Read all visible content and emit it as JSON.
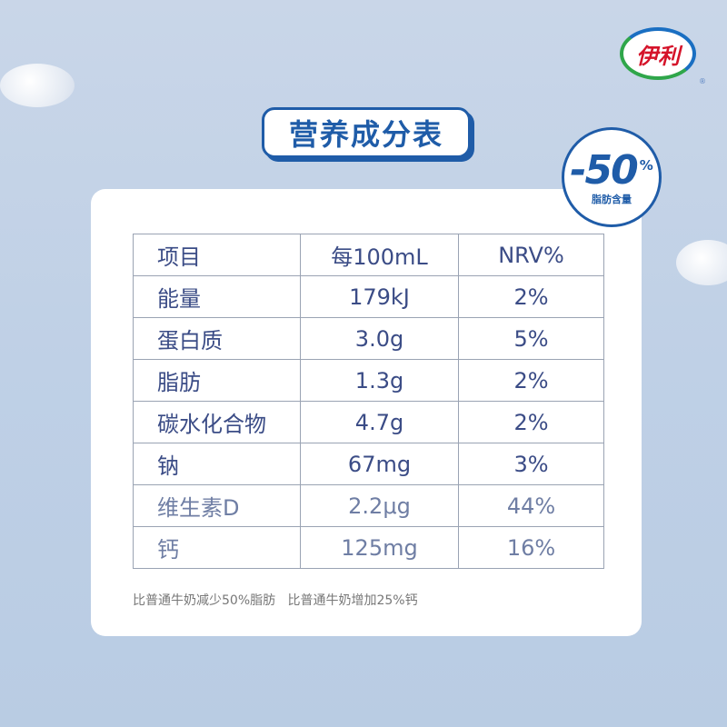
{
  "brand": {
    "logo_text": "伊利",
    "registered": "®",
    "colors": {
      "red": "#d5132a",
      "blue": "#1a6fc2",
      "green": "#2fa64a"
    }
  },
  "title": "营养成分表",
  "badge": {
    "value": "-50",
    "percent": "%",
    "label": "脂肪含量"
  },
  "table": {
    "headers": [
      "项目",
      "每100mL",
      "NRV%"
    ],
    "rows": [
      [
        "能量",
        "179kJ",
        "2%"
      ],
      [
        "蛋白质",
        "3.0g",
        "5%"
      ],
      [
        "脂肪",
        "1.3g",
        "2%"
      ],
      [
        "碳水化合物",
        "4.7g",
        "2%"
      ],
      [
        "钠",
        "67mg",
        "3%"
      ],
      [
        "维生素D",
        "2.2μg",
        "44%"
      ],
      [
        "钙",
        "125mg",
        "16%"
      ]
    ]
  },
  "footnote": "比普通牛奶减少50%脂肪   比普通牛奶增加25%钙",
  "accent_color": "#1f5ca8"
}
